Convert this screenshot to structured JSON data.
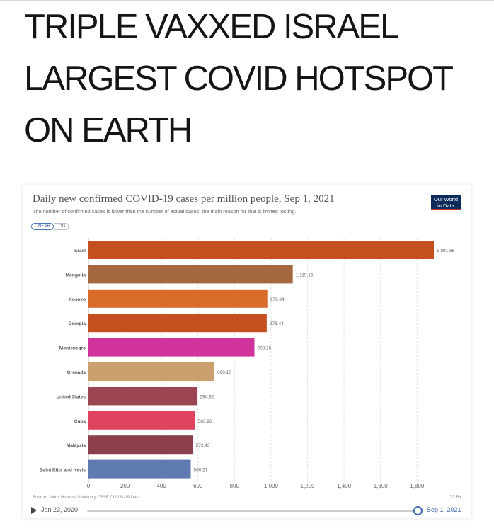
{
  "headline": "TRIPLE VAXXED ISRAEL LARGEST COVID HOTSPOT ON EARTH",
  "logo": {
    "line1": "Our World",
    "line2": "in Data"
  },
  "scale_toggle": {
    "linear": "LINEAR",
    "log": "LOG"
  },
  "source": "Source: Johns Hopkins University CSSE COVID-19 Data",
  "license": "CC BY",
  "timeline": {
    "start": "Jan 23, 2020",
    "end": "Sep 1, 2021"
  },
  "chart_data": {
    "type": "bar",
    "orientation": "horizontal",
    "title": "Daily new confirmed COVID-19 cases per million people, Sep 1, 2021",
    "subtitle": "The number of confirmed cases is lower than the number of actual cases; the main reason for that is limited testing.",
    "categories": [
      "Israel",
      "Mongolia",
      "Kosovo",
      "Georgia",
      "Montenegro",
      "Grenada",
      "United States",
      "Cuba",
      "Malaysia",
      "Saint Kitts and Nevis"
    ],
    "values": [
      1891.86,
      1119.16,
      979.94,
      976.44,
      909.16,
      690.17,
      594.82,
      583.96,
      572.43,
      560.27
    ],
    "value_labels": [
      "1,891.86",
      "1,119.16",
      "979.94",
      "976.44",
      "909.16",
      "690.17",
      "594.82",
      "583.96",
      "572.43",
      "560.27"
    ],
    "colors": [
      "#c4501f",
      "#a5683e",
      "#d96b2b",
      "#c4501f",
      "#d2329b",
      "#c9a06e",
      "#9b4550",
      "#e0435f",
      "#8c3f4a",
      "#5f7bb0"
    ],
    "xticks": [
      0,
      200,
      400,
      600,
      800,
      1000,
      1200,
      1400,
      1600,
      1800
    ],
    "xtick_labels": [
      "0",
      "200",
      "400",
      "600",
      "800",
      "1,000",
      "1,200",
      "1,400",
      "1,600",
      "1,800"
    ],
    "xlim": [
      0,
      1891.86
    ],
    "grid": true
  }
}
